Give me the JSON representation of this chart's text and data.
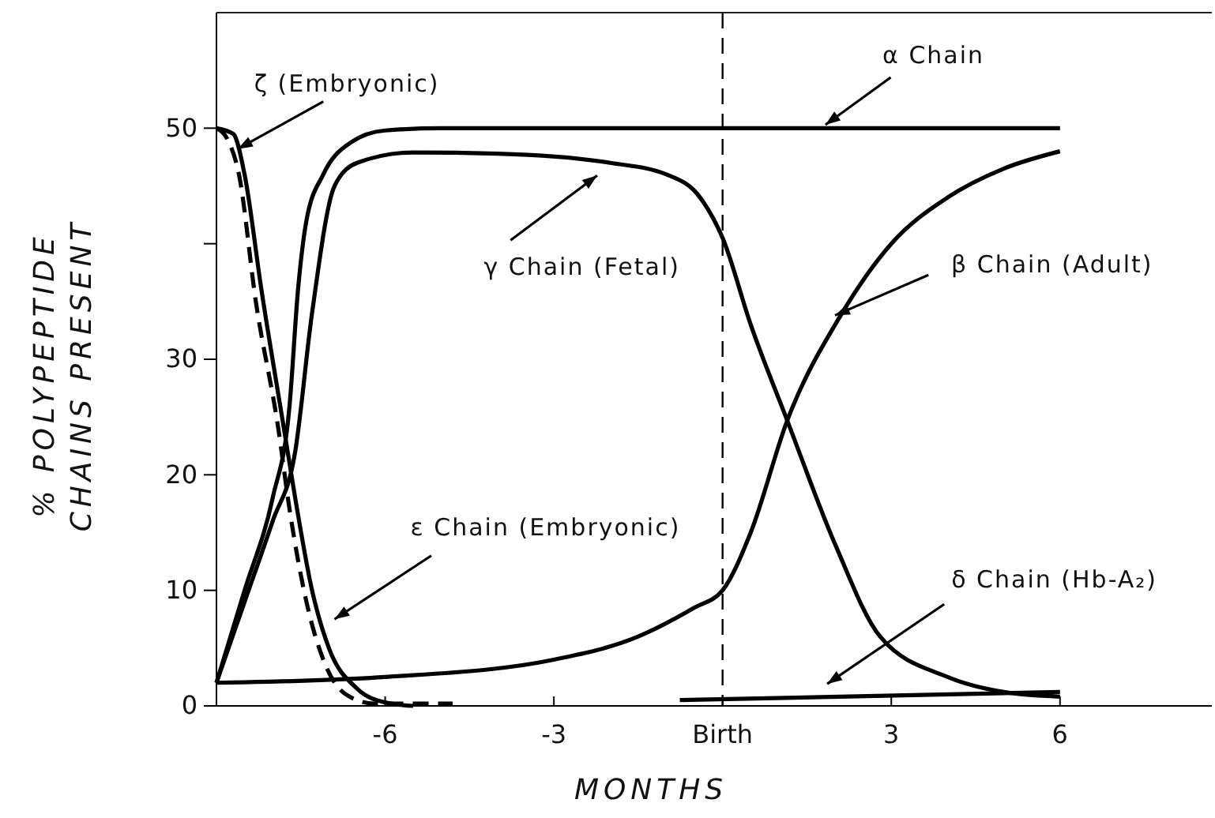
{
  "chart_data": {
    "type": "line",
    "xlabel": "MONTHS",
    "ylabel": "% POLYPEPTIDE CHAINS PRESENT",
    "xlim": [
      -9,
      8.7
    ],
    "ylim": [
      0,
      60
    ],
    "xticks": [
      -6,
      -3,
      {
        "value": 0,
        "label": "Birth"
      },
      3,
      6
    ],
    "yticks": [
      0,
      10,
      20,
      30,
      {
        "value": 40,
        "label": null
      },
      50
    ],
    "grid": false,
    "marker": "none",
    "ref_lines": [
      {
        "axis": "x",
        "value": 0,
        "label": null,
        "line_style": "dashed",
        "color": "#000000"
      }
    ],
    "series": [
      {
        "name": "α Chain",
        "color": "#000000",
        "x": [
          -9,
          -8.5,
          -8,
          -7.7,
          -7.55,
          -7.4,
          -7.1,
          -6.6,
          -6,
          -5,
          6
        ],
        "values": [
          2,
          10,
          18,
          26,
          36,
          42,
          46,
          48.8,
          49.8,
          50,
          50
        ]
      },
      {
        "name": "ε Chain (Embryonic)",
        "color": "#000000",
        "x": [
          -9,
          -8.7,
          -8.5,
          -8.2,
          -7.8,
          -7.6,
          -7.3,
          -7,
          -6.5,
          -6,
          -5.5
        ],
        "values": [
          50,
          49.5,
          46,
          36,
          24,
          18,
          10,
          5,
          1.5,
          0.3,
          0
        ]
      },
      {
        "name": "γ Chain (Fetal)",
        "color": "#000000",
        "x": [
          -9,
          -8.5,
          -8,
          -7.6,
          -7.3,
          -6.9,
          -6.5,
          -5.5,
          -4,
          -2,
          -1,
          -0.4,
          0,
          0.5,
          1.15,
          2,
          2.8,
          4,
          5,
          6
        ],
        "values": [
          2,
          9,
          16,
          22,
          34,
          45,
          47,
          47.9,
          47.8,
          47,
          46,
          44,
          40.5,
          33,
          24.7,
          14,
          6,
          2.5,
          1.2,
          0.8
        ]
      },
      {
        "name": "ζ (Embryonic)",
        "color": "#000000",
        "line_style": "dashed",
        "x": [
          -9,
          -8.8,
          -8.6,
          -8.3,
          -7.9,
          -7.7,
          -7.4,
          -7.1,
          -6.7,
          -6.2,
          -4.8
        ],
        "values": [
          50,
          49,
          46,
          35,
          24,
          17,
          9,
          4,
          1,
          0.2,
          0.2
        ]
      },
      {
        "name": "β Chain (Adult)",
        "color": "#000000",
        "x": [
          -9,
          -6,
          -3,
          -1.5,
          -0.5,
          0,
          0.5,
          1.15,
          2.1,
          3,
          4,
          5,
          6
        ],
        "values": [
          2,
          2.5,
          4,
          6,
          8.5,
          10,
          15,
          24.7,
          33.8,
          40,
          44,
          46.5,
          48
        ]
      },
      {
        "name": "δ Chain (Hb-A₂)",
        "color": "#000000",
        "x": [
          -0.76,
          6
        ],
        "values": [
          0.5,
          1.2
        ]
      }
    ]
  }
}
